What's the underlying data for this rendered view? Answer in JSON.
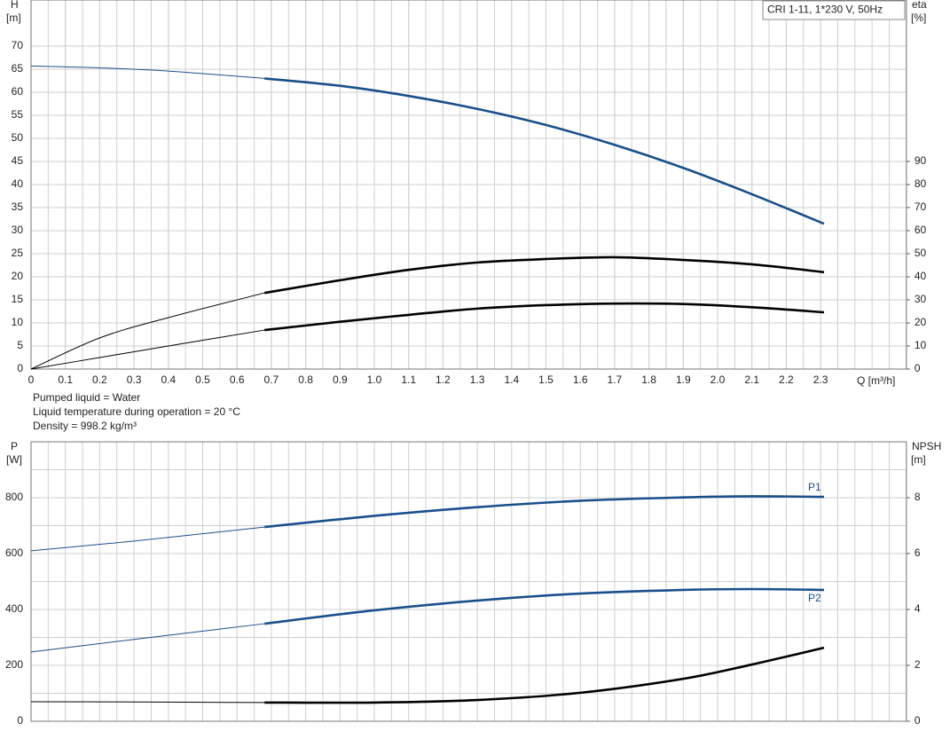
{
  "chart_data": [
    {
      "type": "line",
      "subtitle": "CRI 1-11, 1*230 V, 50Hz",
      "xlabel": "Q [m³/h]",
      "ylabel": "H",
      "yunit": "[m]",
      "y2label": "eta",
      "y2unit": "[%]",
      "xlim": [
        0,
        2.55
      ],
      "xticks": [
        0,
        0.1,
        0.2,
        0.3,
        0.4,
        0.5,
        0.6,
        0.7,
        0.8,
        0.9,
        {
          "value": 1,
          "label": "1.0"
        },
        1.1,
        1.2,
        1.3,
        1.4,
        1.5,
        1.6,
        1.7,
        1.8,
        1.9,
        {
          "value": 2,
          "label": "2.0"
        },
        2.1,
        2.2,
        2.3
      ],
      "xgrid_step": 0.05,
      "ylim": [
        0,
        80
      ],
      "yticks": [
        0,
        5,
        10,
        15,
        20,
        25,
        30,
        35,
        40,
        45,
        50,
        55,
        60,
        65,
        70
      ],
      "y2lim": [
        0,
        160
      ],
      "y2ticks": [
        0,
        10,
        20,
        30,
        40,
        50,
        60,
        70,
        80,
        90
      ],
      "grid": true,
      "operating_range": [
        0.68,
        2.31
      ],
      "x": [
        0,
        0.2,
        0.4,
        0.68,
        0.9,
        1.1,
        1.3,
        1.5,
        1.7,
        1.9,
        2.1,
        2.31
      ],
      "series": [
        {
          "color": "#1a4f8b",
          "values": [
            65.7,
            65.3,
            64.6,
            63.0,
            61.4,
            59.2,
            56.4,
            52.9,
            48.6,
            43.6,
            37.9,
            31.5
          ]
        },
        {
          "color": "#000000",
          "axis": "y2",
          "values": [
            0,
            13.5,
            22.3,
            33,
            38.5,
            43,
            46.2,
            47.7,
            48.5,
            47.3,
            45.4,
            42
          ]
        },
        {
          "color": "#000000",
          "axis": "y2",
          "values": [
            0,
            5,
            10,
            16.9,
            20.5,
            23.5,
            26.2,
            27.7,
            28.4,
            28.2,
            26.8,
            24.6
          ]
        }
      ],
      "notes": [
        "Pumped liquid = Water",
        "Liquid temperature during operation = 20 °C",
        "Density = 998.2 kg/m³"
      ]
    },
    {
      "type": "line",
      "ylabel": "P",
      "yunit": "[W]",
      "y2label": "NPSH",
      "y2unit": "[m]",
      "xlim": [
        0,
        2.55
      ],
      "xgrid_step": 0.05,
      "ylim": [
        0,
        1000
      ],
      "yticks": [
        0,
        200,
        400,
        600,
        800
      ],
      "ygrid_step": 100,
      "y2lim": [
        0,
        10
      ],
      "y2ticks": [
        0,
        2,
        4,
        6,
        8
      ],
      "grid": true,
      "operating_range": [
        0.68,
        2.31
      ],
      "x": [
        0,
        0.3,
        0.68,
        1.0,
        1.3,
        1.6,
        1.9,
        2.1,
        2.31
      ],
      "series": [
        {
          "name": "P1",
          "color": "#1a4f8b",
          "values": [
            610,
            645,
            695,
            735,
            766,
            789,
            801,
            805,
            803
          ]
        },
        {
          "name": "P2",
          "color": "#1a4f8b",
          "values": [
            248,
            293,
            349,
            397,
            432,
            457,
            470,
            473,
            470
          ]
        },
        {
          "color": "#000000",
          "axis": "y2",
          "values": [
            0.7,
            0.69,
            0.67,
            0.67,
            0.76,
            1.02,
            1.52,
            2.03,
            2.63
          ]
        }
      ]
    }
  ]
}
